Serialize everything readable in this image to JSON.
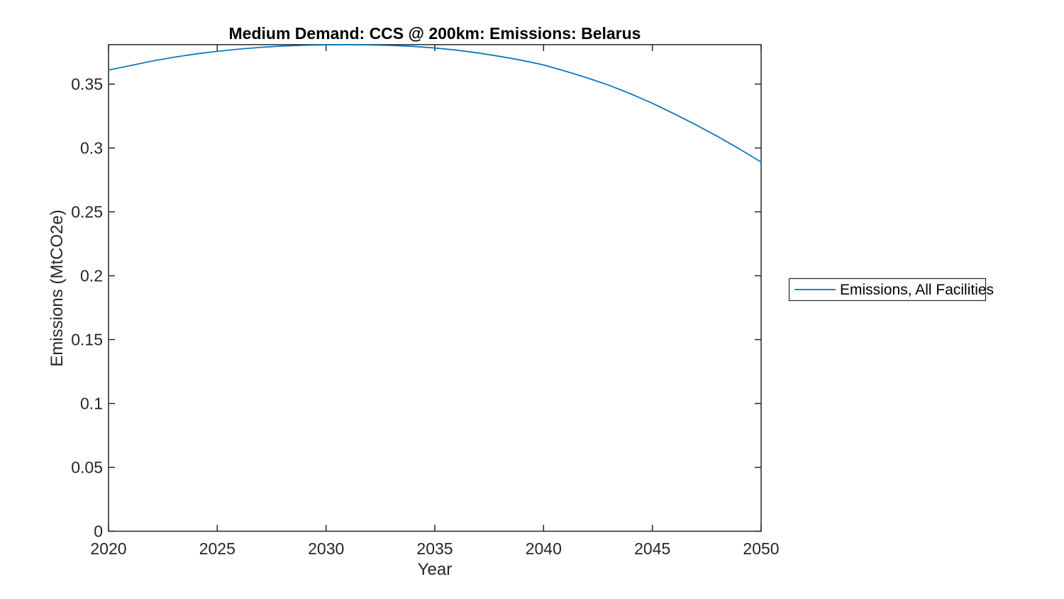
{
  "figure": {
    "background": "#ffffff",
    "plot_background": "#ffffff"
  },
  "chart_data": {
    "type": "line",
    "title": "Medium Demand: CCS @ 200km: Emissions: Belarus",
    "xlabel": "Year",
    "ylabel": "Emissions (MtCO2e)",
    "grid": false,
    "box": true,
    "xlim": [
      2020,
      2050
    ],
    "ylim": [
      0,
      0.3809
    ],
    "x_ticks": [
      2020,
      2025,
      2030,
      2035,
      2040,
      2045,
      2050
    ],
    "x_tick_labels": [
      "2020",
      "2025",
      "2030",
      "2035",
      "2040",
      "2045",
      "2050"
    ],
    "y_ticks": [
      0,
      0.05,
      0.1,
      0.15,
      0.2,
      0.25,
      0.3,
      0.35
    ],
    "y_tick_labels": [
      "0",
      "0.05",
      "0.1",
      "0.15",
      "0.2",
      "0.25",
      "0.3",
      "0.35"
    ],
    "axis_color": "#262626",
    "x": [
      2020,
      2021,
      2022,
      2023,
      2024,
      2025,
      2026,
      2027,
      2028,
      2029,
      2030,
      2031,
      2032,
      2033,
      2034,
      2035,
      2036,
      2037,
      2038,
      2039,
      2040,
      2041,
      2042,
      2043,
      2044,
      2045,
      2046,
      2047,
      2048,
      2049,
      2050
    ],
    "series": [
      {
        "name": "Emissions, All Facilities",
        "color": "#0072BD",
        "values": [
          0.361,
          0.3645,
          0.368,
          0.371,
          0.3736,
          0.3757,
          0.3774,
          0.3788,
          0.3798,
          0.3804,
          0.3808,
          0.3809,
          0.3807,
          0.3803,
          0.3795,
          0.3783,
          0.3766,
          0.3744,
          0.3717,
          0.3686,
          0.365,
          0.3602,
          0.3549,
          0.3492,
          0.3424,
          0.335,
          0.3268,
          0.3181,
          0.309,
          0.2993,
          0.289
        ]
      }
    ],
    "legend": {
      "position": "right-outside",
      "entries": [
        "Emissions, All Facilities"
      ]
    }
  }
}
